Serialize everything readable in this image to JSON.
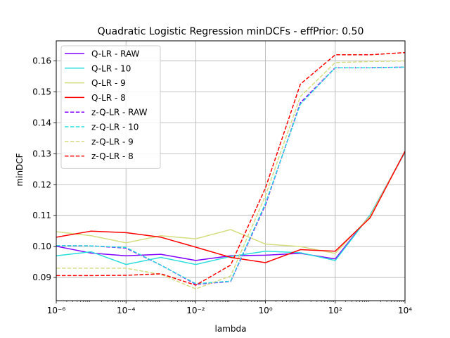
{
  "chart_data": {
    "type": "line",
    "title": "Quadratic Logistic Regression minDCFs - effPrior: 0.50",
    "xlabel": "lambda",
    "ylabel": "minDCF",
    "xscale": "log",
    "xlim_exp": [
      -6,
      4
    ],
    "ylim": [
      0.0825,
      0.1665
    ],
    "grid": true,
    "legend_position": "top-left",
    "x_exponents": [
      -6,
      -5,
      -4,
      -3,
      -2,
      -1,
      0,
      1,
      2,
      3,
      4
    ],
    "x_tick_labels": [
      "10⁻⁶",
      "10⁻⁴",
      "10⁻²",
      "10⁰",
      "10²",
      "10⁴"
    ],
    "x_tick_exponents": [
      -6,
      -4,
      -2,
      0,
      2,
      4
    ],
    "y_ticks": [
      0.09,
      0.1,
      0.11,
      0.12,
      0.13,
      0.14,
      0.15,
      0.16
    ],
    "y_tick_labels": [
      "0.09",
      "0.10",
      "0.11",
      "0.12",
      "0.13",
      "0.14",
      "0.15",
      "0.16"
    ],
    "series": [
      {
        "name": "Q-LR - RAW",
        "color": "#8000ff",
        "dash": "solid",
        "values": [
          0.1001,
          0.0979,
          0.097,
          0.0975,
          0.0955,
          0.097,
          0.0972,
          0.0978,
          0.096,
          0.1102,
          0.1305
        ]
      },
      {
        "name": "Q-LR - 10",
        "color": "#2adddd",
        "dash": "solid",
        "values": [
          0.097,
          0.0983,
          0.0942,
          0.0965,
          0.0942,
          0.0968,
          0.0985,
          0.098,
          0.0955,
          0.1102,
          0.1305
        ]
      },
      {
        "name": "Q-LR - 9",
        "color": "#d4dd80",
        "dash": "solid",
        "values": [
          0.1048,
          0.1035,
          0.1012,
          0.1035,
          0.1025,
          0.1055,
          0.1008,
          0.1,
          0.0978,
          0.1098,
          0.1308
        ]
      },
      {
        "name": "Q-LR - 8",
        "color": "#ff0000",
        "dash": "solid",
        "values": [
          0.103,
          0.105,
          0.1045,
          0.103,
          0.0998,
          0.0965,
          0.0948,
          0.099,
          0.0985,
          0.1093,
          0.1308
        ]
      },
      {
        "name": "z-Q-LR - RAW",
        "color": "#8000ff",
        "dash": "dashed",
        "values": [
          0.1003,
          0.1002,
          0.0995,
          0.094,
          0.0878,
          0.0887,
          0.1135,
          0.1465,
          0.1578,
          0.1578,
          0.158
        ]
      },
      {
        "name": "z-Q-LR - 10",
        "color": "#2adddd",
        "dash": "dashed",
        "values": [
          0.1003,
          0.1002,
          0.0997,
          0.094,
          0.088,
          0.0888,
          0.114,
          0.146,
          0.1578,
          0.1578,
          0.158
        ]
      },
      {
        "name": "z-Q-LR - 9",
        "color": "#d4dd80",
        "dash": "dashed",
        "values": [
          0.093,
          0.093,
          0.093,
          0.091,
          0.0863,
          0.0905,
          0.1165,
          0.1485,
          0.1595,
          0.1598,
          0.16
        ]
      },
      {
        "name": "z-Q-LR - 8",
        "color": "#ff0000",
        "dash": "dashed",
        "values": [
          0.0906,
          0.0906,
          0.0907,
          0.0912,
          0.0875,
          0.094,
          0.119,
          0.1525,
          0.162,
          0.162,
          0.1627
        ]
      }
    ]
  }
}
